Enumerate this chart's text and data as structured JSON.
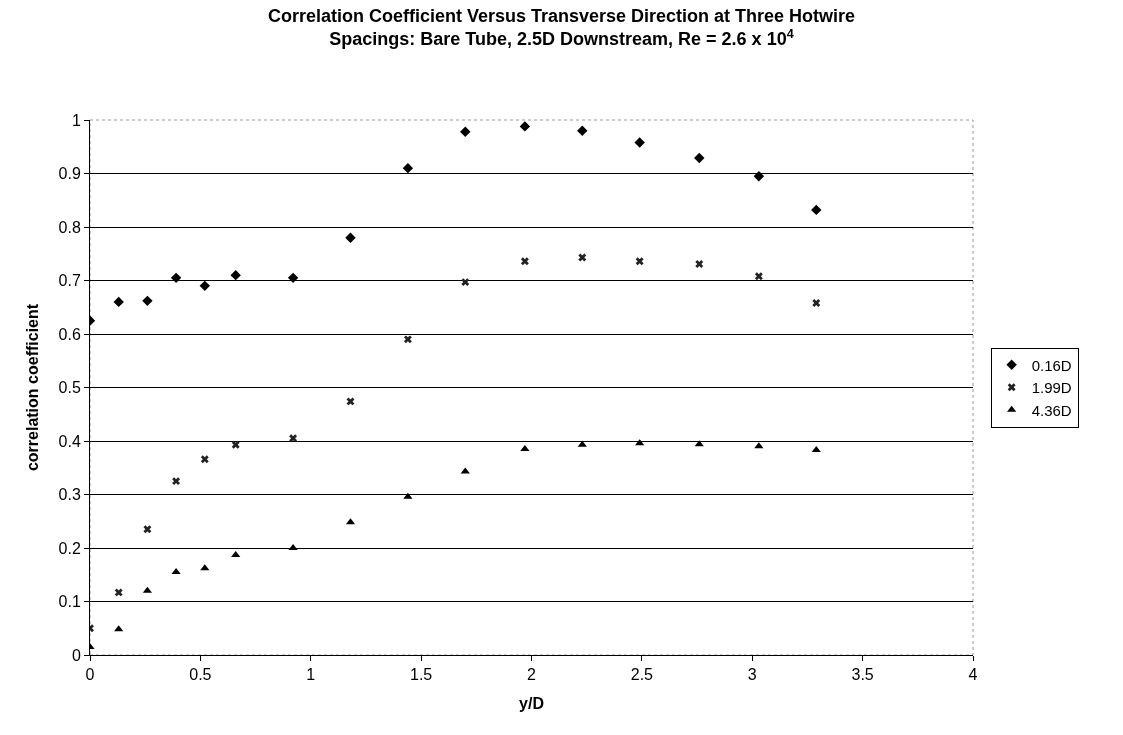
{
  "chart_data": {
    "type": "scatter",
    "title": "Correlation Coefficient Versus Transverse Direction at Three Hotwire\nSpacings: Bare Tube, 2.5D Downstream, Re = 2.6 x 10$^{4}$",
    "xlabel": "y/D",
    "ylabel": "correlation coefficient",
    "x": [
      0,
      0.13,
      0.26,
      0.39,
      0.52,
      0.66,
      0.92,
      1.18,
      1.44,
      1.7,
      1.97,
      2.23,
      2.49,
      2.76,
      3.03,
      3.29
    ],
    "series": [
      {
        "name": "0.16D",
        "color": "#000000",
        "marker": "diamond",
        "values": [
          0.625,
          0.66,
          0.662,
          0.705,
          0.69,
          0.71,
          0.705,
          0.78,
          0.91,
          0.978,
          0.988,
          0.98,
          0.958,
          0.929,
          0.895,
          0.832
        ]
      },
      {
        "name": "1.99D",
        "color": "#222222",
        "marker": "cross",
        "values": [
          0.05,
          0.117,
          0.235,
          0.325,
          0.366,
          0.393,
          0.405,
          0.474,
          0.59,
          0.697,
          0.736,
          0.743,
          0.736,
          0.731,
          0.708,
          0.658
        ]
      },
      {
        "name": "4.36D",
        "color": "#000000",
        "marker": "triangle",
        "values": [
          0.015,
          0.048,
          0.12,
          0.155,
          0.162,
          0.187,
          0.2,
          0.248,
          0.296,
          0.343,
          0.385,
          0.393,
          0.396,
          0.394,
          0.39,
          0.383
        ]
      }
    ],
    "xlim": [
      0,
      4
    ],
    "xticks": [
      0,
      0.5,
      1,
      1.5,
      2,
      2.5,
      3,
      3.5,
      4
    ],
    "ylim": [
      0,
      1
    ],
    "yticks": [
      0,
      0.1,
      0.2,
      0.3,
      0.4,
      0.5,
      0.6,
      0.7,
      0.8,
      0.9,
      1
    ],
    "grid": "y",
    "legend": "right"
  }
}
